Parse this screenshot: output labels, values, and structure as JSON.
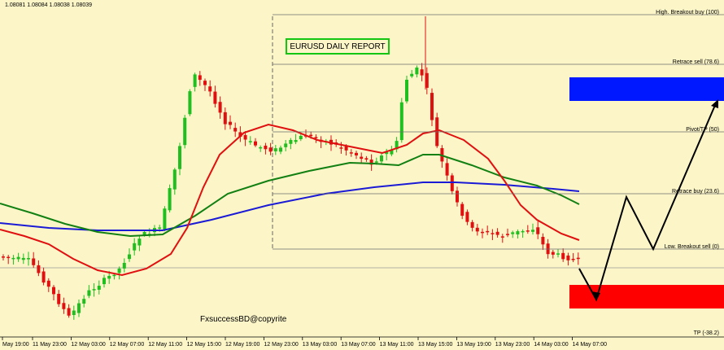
{
  "header": {
    "quote": "1.08081 1.08084 1.08038 1.08039"
  },
  "report_title": "EURUSD DAILY REPORT",
  "watermark": "FxsuccessBD@copyrite",
  "levels": [
    {
      "label": "High. Breakout buy (100)"
    },
    {
      "label": "Retrace sell (78.6)"
    },
    {
      "label": "Pivot/TP (50)"
    },
    {
      "label": "Retrace buy (23.6)"
    },
    {
      "label": "Low. Breakout sell (0)"
    },
    {
      "label": "TP (-38.2)"
    }
  ],
  "time_axis": [
    "May 19:00",
    "11 May 23:00",
    "12 May 03:00",
    "12 May 07:00",
    "12 May 11:00",
    "12 May 15:00",
    "12 May 19:00",
    "12 May 23:00",
    "13 May 03:00",
    "13 May 07:00",
    "13 May 11:00",
    "13 May 15:00",
    "13 May 19:00",
    "13 May 23:00",
    "14 May 03:00",
    "14 May 07:00"
  ]
}
